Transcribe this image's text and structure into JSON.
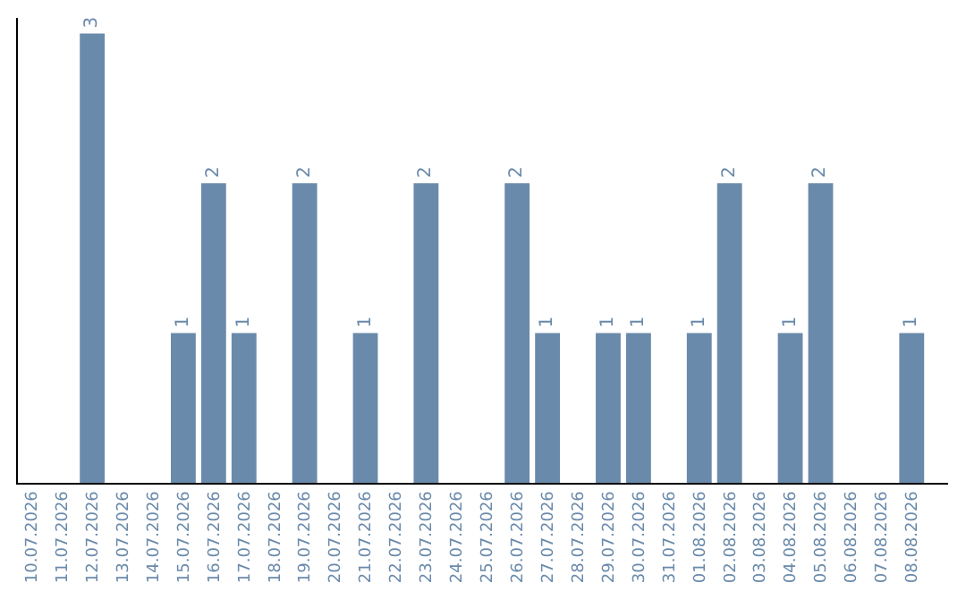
{
  "chart_data": {
    "type": "bar",
    "categories": [
      "10.07.2026",
      "11.07.2026",
      "12.07.2026",
      "13.07.2026",
      "14.07.2026",
      "15.07.2026",
      "16.07.2026",
      "17.07.2026",
      "18.07.2026",
      "19.07.2026",
      "20.07.2026",
      "21.07.2026",
      "22.07.2026",
      "23.07.2026",
      "24.07.2026",
      "25.07.2026",
      "26.07.2026",
      "27.07.2026",
      "28.07.2026",
      "29.07.2026",
      "30.07.2026",
      "31.07.2026",
      "01.08.2026",
      "02.08.2026",
      "03.08.2026",
      "04.08.2026",
      "05.08.2026",
      "06.08.2026",
      "07.08.2026",
      "08.08.2026"
    ],
    "values": [
      0,
      0,
      3,
      0,
      0,
      1,
      2,
      1,
      0,
      2,
      0,
      1,
      0,
      2,
      0,
      0,
      2,
      1,
      0,
      1,
      1,
      0,
      1,
      2,
      0,
      1,
      2,
      0,
      0,
      1
    ],
    "value_labels": [
      null,
      null,
      "3",
      null,
      null,
      "1",
      "2",
      "1",
      null,
      "2",
      null,
      "1",
      null,
      "2",
      null,
      null,
      "2",
      "1",
      null,
      "1",
      "1",
      null,
      "1",
      "2",
      null,
      "1",
      "2",
      null,
      null,
      "1"
    ],
    "color": "#6a8aab"
  }
}
